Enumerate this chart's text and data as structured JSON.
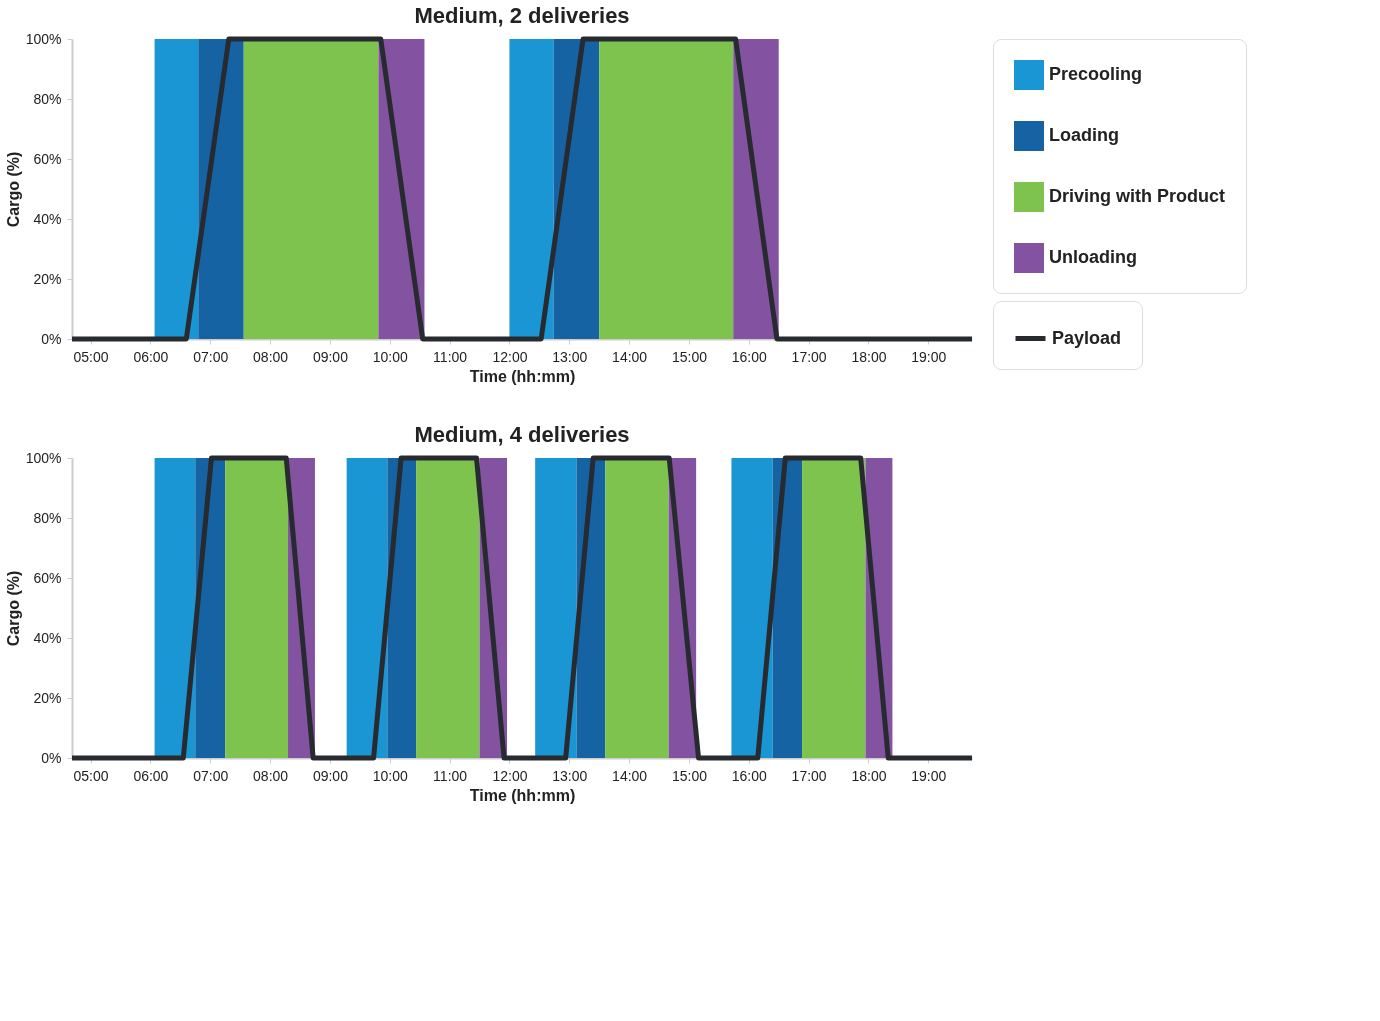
{
  "chart_data": [
    {
      "type": "line",
      "title": "Medium, 2 deliveries",
      "xlabel": "Time (hh:mm)",
      "ylabel": "Cargo (%)",
      "xlim": [
        4.69,
        19.73
      ],
      "ylim": [
        0,
        100
      ],
      "xticks": [
        {
          "value": 5,
          "label": "05:00"
        },
        {
          "value": 6,
          "label": "06:00"
        },
        {
          "value": 7,
          "label": "07:00"
        },
        {
          "value": 8,
          "label": "08:00"
        },
        {
          "value": 9,
          "label": "09:00"
        },
        {
          "value": 10,
          "label": "10:00"
        },
        {
          "value": 11,
          "label": "11:00"
        },
        {
          "value": 12,
          "label": "12:00"
        },
        {
          "value": 13,
          "label": "13:00"
        },
        {
          "value": 14,
          "label": "14:00"
        },
        {
          "value": 15,
          "label": "15:00"
        },
        {
          "value": 16,
          "label": "16:00"
        },
        {
          "value": 17,
          "label": "17:00"
        },
        {
          "value": 18,
          "label": "18:00"
        },
        {
          "value": 19,
          "label": "19:00"
        }
      ],
      "yticks": [
        {
          "value": 0,
          "label": "0%"
        },
        {
          "value": 20,
          "label": "20%"
        },
        {
          "value": 40,
          "label": "40%"
        },
        {
          "value": 60,
          "label": "60%"
        },
        {
          "value": 80,
          "label": "80%"
        },
        {
          "value": 100,
          "label": "100%"
        }
      ],
      "grid": false,
      "legend": "right",
      "line_style": "solid",
      "marker": "none",
      "series": [
        {
          "name": "Precooling",
          "color": "#1a96d4",
          "type": "area",
          "x": [
            6.07,
            6.8,
            null,
            12.0,
            12.74
          ],
          "values": [
            100,
            100,
            null,
            100,
            100
          ]
        },
        {
          "name": "Loading",
          "color": "#1663a3",
          "type": "area",
          "x": [
            6.8,
            7.56,
            null,
            12.74,
            13.5
          ],
          "values": [
            100,
            100,
            null,
            100,
            100
          ]
        },
        {
          "name": "Driving with Product",
          "color": "#7fc34f",
          "type": "area",
          "x": [
            7.56,
            9.81,
            null,
            13.5,
            15.74
          ],
          "values": [
            100,
            100,
            null,
            100,
            100
          ]
        },
        {
          "name": "Unloading",
          "color": "#8352a0",
          "type": "area",
          "x": [
            9.81,
            10.58,
            null,
            15.74,
            16.5
          ],
          "values": [
            100,
            100,
            null,
            100,
            100
          ]
        },
        {
          "name": "Payload",
          "color": "#272b30",
          "x": [
            4.69,
            6.6,
            7.31,
            9.85,
            10.55,
            12.53,
            13.23,
            15.78,
            16.47,
            19.73
          ],
          "values": [
            0,
            0,
            100,
            100,
            0,
            0,
            100,
            100,
            0,
            0
          ]
        }
      ]
    },
    {
      "type": "line",
      "title": "Medium, 4 deliveries",
      "xlabel": "Time (hh:mm)",
      "ylabel": "Cargo (%)",
      "xlim": [
        4.69,
        19.73
      ],
      "ylim": [
        0,
        100
      ],
      "xticks": [
        {
          "value": 5,
          "label": "05:00"
        },
        {
          "value": 6,
          "label": "06:00"
        },
        {
          "value": 7,
          "label": "07:00"
        },
        {
          "value": 8,
          "label": "08:00"
        },
        {
          "value": 9,
          "label": "09:00"
        },
        {
          "value": 10,
          "label": "10:00"
        },
        {
          "value": 11,
          "label": "11:00"
        },
        {
          "value": 12,
          "label": "12:00"
        },
        {
          "value": 13,
          "label": "13:00"
        },
        {
          "value": 14,
          "label": "14:00"
        },
        {
          "value": 15,
          "label": "15:00"
        },
        {
          "value": 16,
          "label": "16:00"
        },
        {
          "value": 17,
          "label": "17:00"
        },
        {
          "value": 18,
          "label": "18:00"
        },
        {
          "value": 19,
          "label": "19:00"
        }
      ],
      "yticks": [
        {
          "value": 0,
          "label": "0%"
        },
        {
          "value": 20,
          "label": "20%"
        },
        {
          "value": 40,
          "label": "40%"
        },
        {
          "value": 60,
          "label": "60%"
        },
        {
          "value": 80,
          "label": "80%"
        },
        {
          "value": 100,
          "label": "100%"
        }
      ],
      "grid": false,
      "line_style": "solid",
      "marker": "none",
      "series": [
        {
          "color": "#1a96d4",
          "type": "area",
          "x": [
            6.07,
            6.75,
            null,
            9.28,
            9.96,
            null,
            12.43,
            13.12,
            null,
            15.71,
            16.4
          ],
          "values": [
            100,
            100,
            null,
            100,
            100,
            null,
            100,
            100,
            null,
            100,
            100
          ]
        },
        {
          "color": "#1663a3",
          "type": "area",
          "x": [
            6.75,
            7.25,
            null,
            9.96,
            10.44,
            null,
            13.12,
            13.6,
            null,
            16.4,
            16.89
          ],
          "values": [
            100,
            100,
            null,
            100,
            100,
            null,
            100,
            100,
            null,
            100,
            100
          ]
        },
        {
          "color": "#7fc34f",
          "type": "area",
          "x": [
            7.25,
            8.3,
            null,
            10.44,
            11.5,
            null,
            13.6,
            14.66,
            null,
            16.89,
            17.95
          ],
          "values": [
            100,
            100,
            null,
            100,
            100,
            null,
            100,
            100,
            null,
            100,
            100
          ]
        },
        {
          "color": "#8352a0",
          "type": "area",
          "x": [
            8.3,
            8.75,
            null,
            11.5,
            11.96,
            null,
            14.66,
            15.12,
            null,
            17.95,
            18.4
          ],
          "values": [
            100,
            100,
            null,
            100,
            100,
            null,
            100,
            100,
            null,
            100,
            100
          ]
        },
        {
          "color": "#272b30",
          "x": [
            4.69,
            6.55,
            7.02,
            8.27,
            8.72,
            9.73,
            10.19,
            11.45,
            11.91,
            12.94,
            13.4,
            14.67,
            15.16,
            16.15,
            16.61,
            17.87,
            18.33,
            19.73
          ],
          "values": [
            0,
            0,
            100,
            100,
            0,
            0,
            100,
            100,
            0,
            0,
            100,
            100,
            0,
            0,
            100,
            100,
            0,
            0
          ]
        }
      ]
    }
  ]
}
